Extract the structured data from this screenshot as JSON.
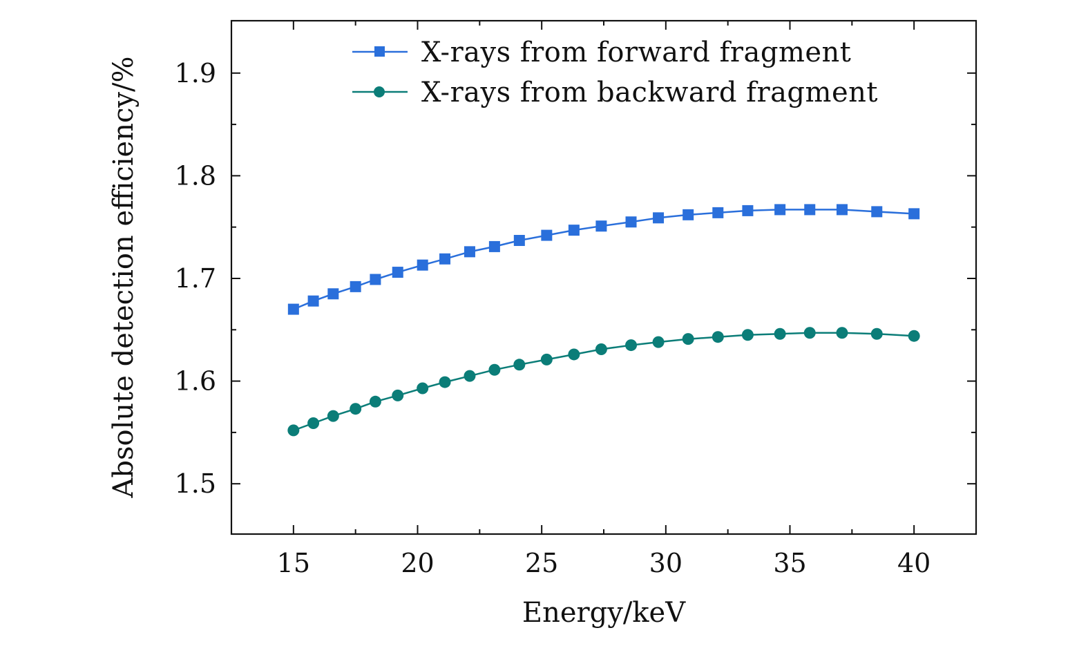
{
  "chart_data": {
    "type": "line",
    "title": "",
    "xlabel": "Energy/keV",
    "ylabel": "Absolute detection efficiency/%",
    "xlim": [
      12.5,
      42.5
    ],
    "ylim": [
      1.451,
      1.951
    ],
    "xticks": [
      15,
      20,
      25,
      30,
      35,
      40
    ],
    "xtick_labels": [
      "15",
      "20",
      "25",
      "30",
      "35",
      "40"
    ],
    "yticks": [
      1.5,
      1.6,
      1.7,
      1.8,
      1.9
    ],
    "ytick_labels": [
      "1.5",
      "1.6",
      "1.7",
      "1.8",
      "1.9"
    ],
    "grid": false,
    "legend_position": "top-right",
    "x": [
      15.0,
      15.8,
      16.6,
      17.5,
      18.3,
      19.2,
      20.2,
      21.1,
      22.1,
      23.1,
      24.1,
      25.2,
      26.3,
      27.4,
      28.6,
      29.7,
      30.9,
      32.1,
      33.3,
      34.6,
      35.8,
      37.1,
      38.5,
      40.0
    ],
    "series": [
      {
        "name": "X-rays from forward fragment",
        "color": "#2a6fdb",
        "marker": "square",
        "values": [
          1.67,
          1.678,
          1.685,
          1.692,
          1.699,
          1.706,
          1.713,
          1.719,
          1.726,
          1.731,
          1.737,
          1.742,
          1.747,
          1.751,
          1.755,
          1.759,
          1.762,
          1.764,
          1.766,
          1.767,
          1.767,
          1.767,
          1.765,
          1.763
        ]
      },
      {
        "name": "X-rays from backward fragment",
        "color": "#0b7d78",
        "marker": "circle",
        "values": [
          1.552,
          1.559,
          1.566,
          1.573,
          1.58,
          1.586,
          1.593,
          1.599,
          1.605,
          1.611,
          1.616,
          1.621,
          1.626,
          1.631,
          1.635,
          1.638,
          1.641,
          1.643,
          1.645,
          1.646,
          1.647,
          1.647,
          1.646,
          1.644
        ]
      }
    ]
  }
}
